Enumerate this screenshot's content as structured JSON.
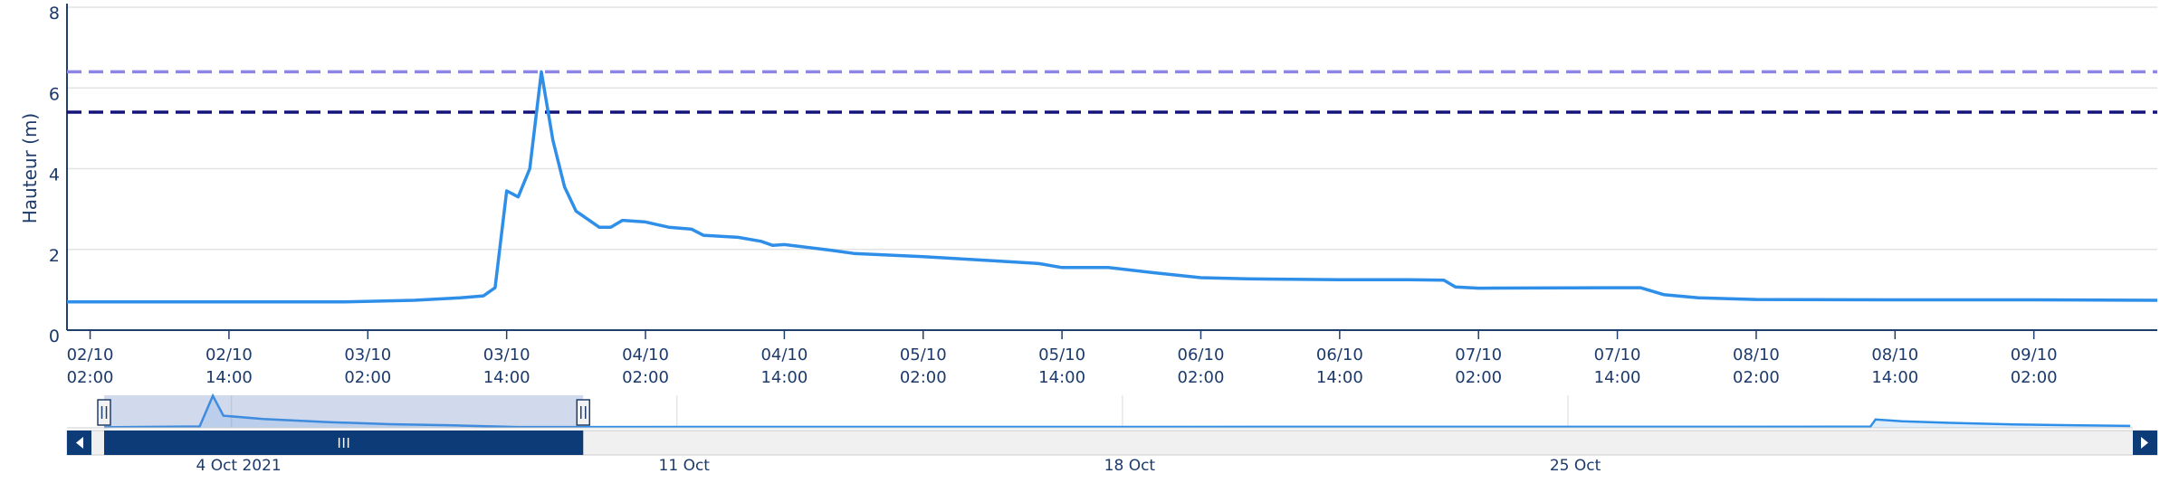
{
  "chart_data": {
    "type": "line",
    "y_label": "Hauteur (m)",
    "x": [
      "2021-10-02T00:00",
      "2021-10-02T12:00",
      "2021-10-03T00:00",
      "2021-10-03T06:00",
      "2021-10-03T10:00",
      "2021-10-03T12:00",
      "2021-10-03T13:00",
      "2021-10-03T14:00",
      "2021-10-03T15:00",
      "2021-10-03T16:00",
      "2021-10-03T17:00",
      "2021-10-03T18:00",
      "2021-10-03T19:00",
      "2021-10-03T20:00",
      "2021-10-03T22:00",
      "2021-10-03T23:00",
      "2021-10-04T00:00",
      "2021-10-04T02:00",
      "2021-10-04T04:00",
      "2021-10-04T06:00",
      "2021-10-04T07:00",
      "2021-10-04T10:00",
      "2021-10-04T12:00",
      "2021-10-04T13:00",
      "2021-10-04T14:00",
      "2021-10-04T18:00",
      "2021-10-04T20:00",
      "2021-10-05T02:00",
      "2021-10-05T08:00",
      "2021-10-05T12:00",
      "2021-10-05T14:00",
      "2021-10-05T18:00",
      "2021-10-05T22:00",
      "2021-10-06T02:00",
      "2021-10-06T06:00",
      "2021-10-06T14:00",
      "2021-10-06T20:00",
      "2021-10-06T23:00",
      "2021-10-07T00:00",
      "2021-10-07T02:00",
      "2021-10-07T14:00",
      "2021-10-07T16:00",
      "2021-10-07T18:00",
      "2021-10-07T21:00",
      "2021-10-08T02:00",
      "2021-10-08T14:00",
      "2021-10-09T02:00",
      "2021-10-09T12:40"
    ],
    "series": [
      {
        "color": "#2f8fe8",
        "values": [
          0.7,
          0.7,
          0.7,
          0.74,
          0.8,
          0.85,
          1.05,
          3.45,
          3.3,
          4.0,
          6.4,
          4.7,
          3.55,
          2.95,
          2.55,
          2.55,
          2.72,
          2.68,
          2.55,
          2.5,
          2.35,
          2.3,
          2.2,
          2.1,
          2.12,
          1.98,
          1.9,
          1.82,
          1.72,
          1.65,
          1.55,
          1.55,
          1.42,
          1.3,
          1.27,
          1.25,
          1.25,
          1.24,
          1.07,
          1.04,
          1.05,
          1.05,
          0.88,
          0.8,
          0.76,
          0.75,
          0.75,
          0.74
        ]
      }
    ],
    "plot_lines": [
      {
        "value": 6.4,
        "color": "#8d86e6"
      },
      {
        "value": 5.4,
        "color": "#14147a"
      }
    ],
    "xlim": [
      "2021-10-02T00:00",
      "2021-10-09T12:40"
    ],
    "xticks": [
      {
        "value": "2021-10-02T02:00",
        "label": "02/10\n02:00"
      },
      {
        "value": "2021-10-02T14:00",
        "label": "02/10\n14:00"
      },
      {
        "value": "2021-10-03T02:00",
        "label": "03/10\n02:00"
      },
      {
        "value": "2021-10-03T14:00",
        "label": "03/10\n14:00"
      },
      {
        "value": "2021-10-04T02:00",
        "label": "04/10\n02:00"
      },
      {
        "value": "2021-10-04T14:00",
        "label": "04/10\n14:00"
      },
      {
        "value": "2021-10-05T02:00",
        "label": "05/10\n02:00"
      },
      {
        "value": "2021-10-05T14:00",
        "label": "05/10\n14:00"
      },
      {
        "value": "2021-10-06T02:00",
        "label": "06/10\n02:00"
      },
      {
        "value": "2021-10-06T14:00",
        "label": "06/10\n14:00"
      },
      {
        "value": "2021-10-07T02:00",
        "label": "07/10\n02:00"
      },
      {
        "value": "2021-10-07T14:00",
        "label": "07/10\n14:00"
      },
      {
        "value": "2021-10-08T02:00",
        "label": "08/10\n02:00"
      },
      {
        "value": "2021-10-08T14:00",
        "label": "08/10\n14:00"
      },
      {
        "value": "2021-10-09T02:00",
        "label": "09/10\n02:00"
      }
    ],
    "ylim": [
      0,
      8
    ],
    "yticks": [
      0,
      2,
      4,
      6,
      8
    ],
    "grid": true,
    "navigator": {
      "x": [
        "2021-10-02T00:00",
        "2021-10-03T12:00",
        "2021-10-03T17:00",
        "2021-10-03T21:00",
        "2021-10-04T12:00",
        "2021-10-05T12:00",
        "2021-10-06T12:00",
        "2021-10-07T12:00",
        "2021-10-08T12:00",
        "2021-10-29T18:00",
        "2021-10-29T20:00",
        "2021-10-30T06:00",
        "2021-10-31T00:00",
        "2021-11-01T00:00",
        "2021-11-02T20:00"
      ],
      "values": [
        0.7,
        0.85,
        6.4,
        2.8,
        2.2,
        1.65,
        1.25,
        1.05,
        0.75,
        0.8,
        2.1,
        1.8,
        1.5,
        1.2,
        0.95
      ],
      "xlim": [
        "2021-10-01T10:00",
        "2021-11-02T21:00"
      ],
      "ylim": [
        0.6,
        6.5
      ],
      "xticks": [
        {
          "value": "2021-10-04T00:00",
          "label": "4 Oct 2021"
        },
        {
          "value": "2021-10-11T00:00",
          "label": "11 Oct"
        },
        {
          "value": "2021-10-18T00:00",
          "label": "18 Oct"
        },
        {
          "value": "2021-10-25T00:00",
          "label": "25 Oct"
        }
      ]
    }
  }
}
